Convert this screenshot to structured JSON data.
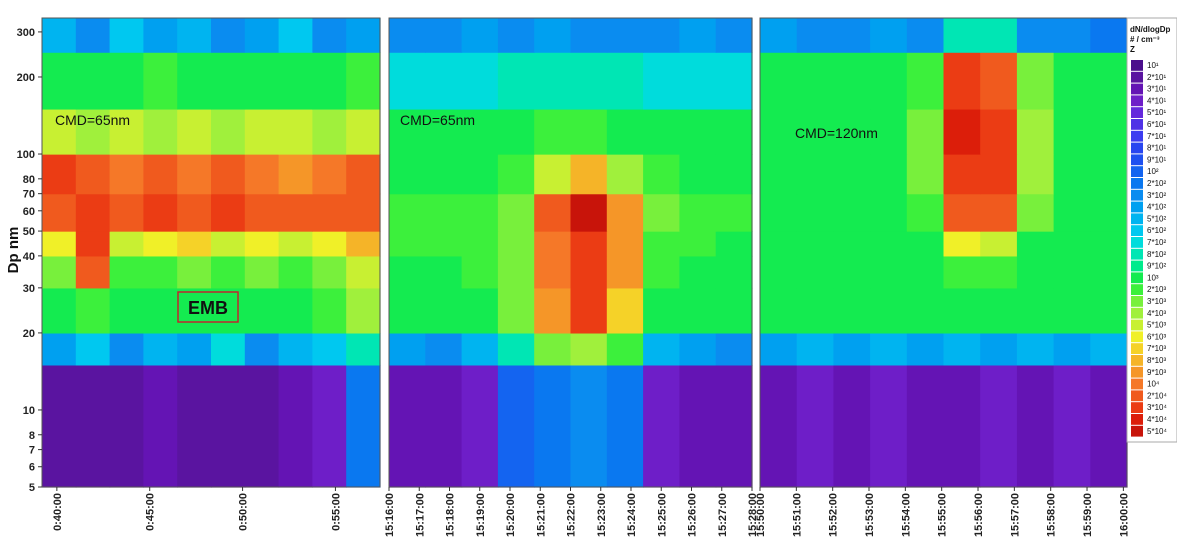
{
  "chart_data": [
    {
      "type": "heatmap",
      "y_label": "Dp nm",
      "ylog": true,
      "ylim": [
        5,
        340
      ],
      "yticks": [
        5,
        6,
        7,
        8,
        10,
        20,
        30,
        40,
        50,
        60,
        70,
        80,
        100,
        200,
        300
      ],
      "xlim": [
        39.2,
        57.4
      ],
      "xticks": [
        {
          "value": 40,
          "label": "0:40:00"
        },
        {
          "value": 45,
          "label": "0:45:00"
        },
        {
          "value": 50,
          "label": "0:50:00"
        },
        {
          "value": 55,
          "label": "0:55:00"
        }
      ],
      "y_bins": [
        5,
        15,
        20,
        30,
        40,
        50,
        70,
        100,
        150,
        250,
        340
      ],
      "z": [
        [
          20,
          20,
          20,
          30,
          20,
          20,
          20,
          30,
          40,
          200
        ],
        [
          400,
          600,
          300,
          500,
          400,
          700,
          300,
          500,
          600,
          800
        ],
        [
          1500,
          2000,
          1500,
          1200,
          1500,
          1800,
          1500,
          1500,
          2000,
          4000
        ],
        [
          3000,
          20000,
          2000,
          2500,
          3000,
          2500,
          3000,
          2500,
          3000,
          5000
        ],
        [
          6000,
          30000,
          5000,
          6000,
          7000,
          5000,
          6000,
          5000,
          6000,
          8000
        ],
        [
          20000,
          30000,
          20000,
          30000,
          20000,
          30000,
          20000,
          20000,
          20000,
          20000
        ],
        [
          30000,
          20000,
          10000,
          20000,
          10000,
          20000,
          10000,
          9000,
          10000,
          20000
        ],
        [
          5000,
          4000,
          5000,
          4000,
          5000,
          4000,
          5000,
          5000,
          4000,
          5000
        ],
        [
          1500,
          1500,
          1200,
          2000,
          1500,
          1500,
          1200,
          1500,
          1500,
          2000
        ],
        [
          500,
          300,
          600,
          400,
          500,
          300,
          400,
          600,
          300,
          400
        ]
      ],
      "annotation": "CMD=65nm",
      "boxed_label": "EMB"
    },
    {
      "type": "heatmap",
      "ylog": true,
      "ylim": [
        5,
        340
      ],
      "xlim": [
        916,
        928
      ],
      "xticks": [
        {
          "value": 916,
          "label": "15:16:00"
        },
        {
          "value": 917,
          "label": "15:17:00"
        },
        {
          "value": 918,
          "label": "15:18:00"
        },
        {
          "value": 919,
          "label": "15:19:00"
        },
        {
          "value": 920,
          "label": "15:20:00"
        },
        {
          "value": 921,
          "label": "15:21:00"
        },
        {
          "value": 922,
          "label": "15:22:00"
        },
        {
          "value": 923,
          "label": "15:23:00"
        },
        {
          "value": 924,
          "label": "15:24:00"
        },
        {
          "value": 925,
          "label": "15:25:00"
        },
        {
          "value": 926,
          "label": "15:26:00"
        },
        {
          "value": 927,
          "label": "15:27:00"
        },
        {
          "value": 928,
          "label": "15:28:00"
        }
      ],
      "y_bins": [
        5,
        15,
        20,
        30,
        40,
        50,
        70,
        100,
        150,
        250,
        340
      ],
      "z": [
        [
          30,
          30,
          40,
          100,
          200,
          300,
          200,
          40,
          30,
          30
        ],
        [
          400,
          300,
          500,
          800,
          3000,
          4000,
          2000,
          500,
          400,
          300
        ],
        [
          1500,
          1500,
          1500,
          3000,
          9000,
          30000,
          7000,
          1500,
          1500,
          1500
        ],
        [
          1500,
          1500,
          2000,
          3000,
          10000,
          30000,
          9000,
          2000,
          1500,
          1500
        ],
        [
          2000,
          2000,
          2000,
          3000,
          10000,
          30000,
          9000,
          2000,
          2000,
          1500
        ],
        [
          2000,
          2000,
          2000,
          3000,
          20000,
          50000,
          9000,
          3000,
          2000,
          2000
        ],
        [
          1500,
          1500,
          1500,
          2000,
          5000,
          8000,
          4000,
          2000,
          1500,
          1500
        ],
        [
          1000,
          1000,
          1000,
          1500,
          2000,
          2000,
          1500,
          1000,
          1000,
          1000
        ],
        [
          700,
          700,
          700,
          800,
          800,
          800,
          800,
          700,
          700,
          700
        ],
        [
          300,
          300,
          400,
          300,
          400,
          300,
          300,
          300,
          400,
          300
        ]
      ],
      "annotation": "CMD=65nm"
    },
    {
      "type": "heatmap",
      "ylog": true,
      "ylim": [
        5,
        340
      ],
      "xlim": [
        950,
        960.1
      ],
      "xticks": [
        {
          "value": 950,
          "label": "15:50:00"
        },
        {
          "value": 951,
          "label": "15:51:00"
        },
        {
          "value": 952,
          "label": "15:52:00"
        },
        {
          "value": 953,
          "label": "15:53:00"
        },
        {
          "value": 954,
          "label": "15:54:00"
        },
        {
          "value": 955,
          "label": "15:55:00"
        },
        {
          "value": 956,
          "label": "15:56:00"
        },
        {
          "value": 957,
          "label": "15:57:00"
        },
        {
          "value": 958,
          "label": "15:58:00"
        },
        {
          "value": 959,
          "label": "15:59:00"
        },
        {
          "value": 960,
          "label": "16:00:00"
        }
      ],
      "y_bins": [
        5,
        15,
        20,
        30,
        40,
        50,
        70,
        100,
        150,
        250,
        340
      ],
      "z": [
        [
          30,
          40,
          30,
          40,
          30,
          30,
          40,
          30,
          40,
          30
        ],
        [
          400,
          500,
          400,
          500,
          400,
          500,
          400,
          500,
          400,
          500
        ],
        [
          1500,
          1500,
          1500,
          1500,
          1500,
          1500,
          1500,
          1500,
          1500,
          1500
        ],
        [
          1500,
          1500,
          1500,
          1500,
          1500,
          2000,
          2000,
          1500,
          1500,
          1500
        ],
        [
          1500,
          1500,
          1500,
          1500,
          1500,
          6000,
          5000,
          1500,
          1500,
          1500
        ],
        [
          1500,
          1500,
          1500,
          1500,
          2000,
          20000,
          20000,
          3000,
          1500,
          1500
        ],
        [
          1500,
          1500,
          1500,
          1500,
          3000,
          30000,
          30000,
          4000,
          1500,
          1500
        ],
        [
          1500,
          1500,
          1500,
          1500,
          3000,
          40000,
          30000,
          4000,
          1500,
          1500
        ],
        [
          1000,
          1000,
          1000,
          1000,
          2000,
          30000,
          20000,
          3000,
          1000,
          1000
        ],
        [
          400,
          300,
          300,
          400,
          300,
          800,
          800,
          300,
          300,
          200
        ]
      ],
      "annotation": "CMD=120nm"
    }
  ],
  "color_scale": {
    "title": "dN/dlogDp",
    "unit": "# / cm⁻³",
    "z_label": "Z",
    "levels": [
      {
        "value": 10,
        "label": "10¹"
      },
      {
        "value": 20,
        "label": "2*10¹"
      },
      {
        "value": 30,
        "label": "3*10¹"
      },
      {
        "value": 40,
        "label": "4*10¹"
      },
      {
        "value": 50,
        "label": "5*10¹"
      },
      {
        "value": 60,
        "label": "6*10¹"
      },
      {
        "value": 70,
        "label": "7*10¹"
      },
      {
        "value": 80,
        "label": "8*10¹"
      },
      {
        "value": 90,
        "label": "9*10¹"
      },
      {
        "value": 100,
        "label": "10²"
      },
      {
        "value": 200,
        "label": "2*10²"
      },
      {
        "value": 300,
        "label": "3*10²"
      },
      {
        "value": 400,
        "label": "4*10²"
      },
      {
        "value": 500,
        "label": "5*10²"
      },
      {
        "value": 600,
        "label": "6*10²"
      },
      {
        "value": 700,
        "label": "7*10²"
      },
      {
        "value": 800,
        "label": "8*10²"
      },
      {
        "value": 900,
        "label": "9*10²"
      },
      {
        "value": 1000,
        "label": "10³"
      },
      {
        "value": 2000,
        "label": "2*10³"
      },
      {
        "value": 3000,
        "label": "3*10³"
      },
      {
        "value": 4000,
        "label": "4*10³"
      },
      {
        "value": 5000,
        "label": "5*10³"
      },
      {
        "value": 6000,
        "label": "6*10³"
      },
      {
        "value": 7000,
        "label": "7*10³"
      },
      {
        "value": 8000,
        "label": "8*10³"
      },
      {
        "value": 9000,
        "label": "9*10³"
      },
      {
        "value": 10000,
        "label": "10⁴"
      },
      {
        "value": 20000,
        "label": "2*10⁴"
      },
      {
        "value": 30000,
        "label": "3*10⁴"
      },
      {
        "value": 40000,
        "label": "4*10⁴"
      },
      {
        "value": 50000,
        "label": "5*10⁴"
      }
    ],
    "colors": [
      "#4b0f8c",
      "#5a14a0",
      "#6414b4",
      "#6e1ec8",
      "#6428dc",
      "#5032e6",
      "#3c3cf0",
      "#2846f0",
      "#1e50f0",
      "#1464f0",
      "#0a78f0",
      "#0a8cf0",
      "#00a0f0",
      "#00b4f0",
      "#00c8f0",
      "#00dcdc",
      "#00e6b4",
      "#00eb8c",
      "#14eb50",
      "#3cf03c",
      "#78f03c",
      "#a0f03c",
      "#c8f032",
      "#f0f028",
      "#f5d228",
      "#f5b428",
      "#f59628",
      "#f57828",
      "#f05a1e",
      "#eb3c14",
      "#dc1e0a",
      "#c8140a"
    ]
  }
}
